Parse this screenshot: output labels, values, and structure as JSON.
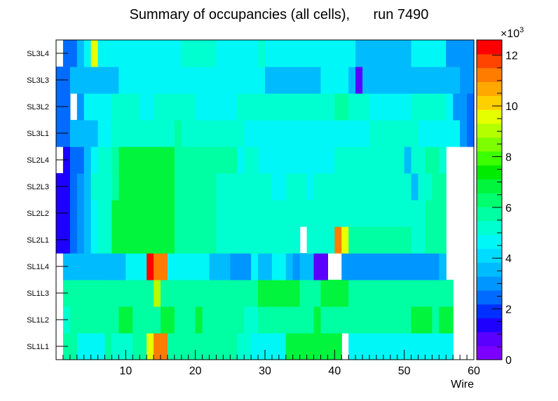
{
  "chart_data": {
    "type": "heatmap",
    "title": "Summary of occupancies (all cells),      run 7490",
    "xlabel": "Wire",
    "ylabel": "",
    "xlim": [
      0,
      60
    ],
    "x_ticks": [
      "10",
      "20",
      "30",
      "40",
      "50",
      "60"
    ],
    "y_categories": [
      "SL1L1",
      "SL1L2",
      "SL1L3",
      "SL1L4",
      "SL2L1",
      "SL2L2",
      "SL2L3",
      "SL2L4",
      "SL3L1",
      "SL3L2",
      "SL3L3",
      "SL3L4"
    ],
    "z_range": [
      0,
      12600
    ],
    "z_multiplier_label": "×10",
    "z_multiplier_exponent": "3",
    "z_ticks": [
      "0",
      "2",
      "4",
      "6",
      "8",
      "10",
      "12"
    ],
    "values": [
      [
        0,
        5.6,
        5.6,
        4.6,
        4.6,
        4.6,
        4.6,
        5.6,
        5.0,
        5.0,
        5.0,
        5.6,
        5.6,
        9.6,
        11.0,
        11.0,
        6.0,
        5.6,
        5.6,
        6.0,
        6.0,
        5.6,
        5.6,
        5.6,
        5.6,
        5.6,
        5.0,
        5.0,
        4.6,
        4.6,
        4.6,
        4.6,
        4.6,
        6.6,
        6.6,
        6.6,
        6.6,
        6.6,
        6.6,
        6.6,
        6.6,
        0,
        4.6,
        4.6,
        4.6,
        4.4,
        4.4,
        4.4,
        4.4,
        4.6,
        4.6,
        4.6,
        4.6,
        4.6,
        4.6,
        4.6,
        4.4,
        0,
        0,
        0
      ],
      [
        0,
        5.0,
        5.6,
        5.6,
        5.6,
        5.6,
        5.6,
        5.6,
        5.6,
        6.6,
        6.6,
        6.0,
        5.6,
        6.0,
        6.0,
        6.6,
        6.6,
        5.6,
        5.6,
        6.0,
        6.6,
        5.6,
        5.6,
        5.6,
        5.6,
        5.6,
        5.6,
        5.0,
        5.0,
        5.6,
        5.6,
        5.6,
        5.6,
        6.0,
        6.0,
        5.6,
        5.6,
        6.6,
        6.0,
        6.0,
        6.0,
        6.0,
        5.6,
        5.6,
        5.6,
        5.6,
        5.6,
        5.6,
        5.6,
        5.6,
        5.6,
        6.6,
        6.6,
        6.6,
        5.6,
        6.6,
        6.6,
        0,
        0,
        0
      ],
      [
        0,
        5.6,
        5.6,
        5.6,
        5.6,
        5.6,
        5.6,
        5.6,
        5.6,
        5.6,
        5.6,
        5.6,
        6.0,
        6.0,
        9.2,
        6.0,
        6.0,
        6.0,
        6.0,
        6.0,
        6.0,
        6.0,
        6.0,
        6.0,
        6.0,
        6.0,
        6.0,
        5.6,
        5.6,
        6.6,
        6.6,
        6.6,
        6.6,
        6.6,
        6.6,
        6.0,
        5.6,
        6.0,
        6.6,
        6.6,
        6.6,
        6.6,
        5.6,
        5.6,
        5.6,
        5.6,
        5.6,
        5.6,
        5.6,
        5.6,
        5.6,
        5.6,
        5.6,
        5.6,
        5.6,
        5.6,
        5.6,
        0,
        0,
        0
      ],
      [
        0,
        3.8,
        3.8,
        3.8,
        3.8,
        3.8,
        3.8,
        3.8,
        3.8,
        3.8,
        4.6,
        4.6,
        4.6,
        12.2,
        11.0,
        11.0,
        4.6,
        4.6,
        4.6,
        4.6,
        4.6,
        4.6,
        3.8,
        3.8,
        3.8,
        3.2,
        3.2,
        3.2,
        4.6,
        3.8,
        3.8,
        4.6,
        4.6,
        3.8,
        3.2,
        3.8,
        3.8,
        0.8,
        0.8,
        0,
        0,
        3.2,
        2.8,
        2.8,
        2.8,
        2.8,
        2.8,
        2.8,
        2.8,
        2.8,
        2.8,
        2.8,
        2.8,
        2.8,
        2.8,
        3.8,
        0,
        0,
        0,
        0
      ],
      [
        1.4,
        1.4,
        2.2,
        2.8,
        3.8,
        4.6,
        5.0,
        5.0,
        6.6,
        6.6,
        6.6,
        6.6,
        6.6,
        6.6,
        6.6,
        6.6,
        6.6,
        5.6,
        5.6,
        5.6,
        5.6,
        5.6,
        5.6,
        5.0,
        5.0,
        5.0,
        5.0,
        5.0,
        5.0,
        5.0,
        5.0,
        5.0,
        5.0,
        5.0,
        5.0,
        0,
        5.0,
        5.0,
        5.0,
        5.0,
        11.0,
        9.6,
        6.0,
        5.6,
        5.6,
        5.6,
        5.6,
        5.6,
        5.6,
        5.6,
        5.6,
        5.0,
        5.0,
        5.6,
        5.6,
        5.6,
        0,
        0,
        0,
        0
      ],
      [
        1.4,
        1.4,
        2.2,
        2.8,
        3.8,
        4.6,
        5.0,
        5.0,
        6.6,
        6.6,
        6.6,
        6.6,
        6.6,
        6.6,
        6.6,
        6.6,
        6.6,
        6.0,
        6.0,
        6.0,
        5.6,
        5.6,
        5.6,
        5.0,
        5.0,
        5.0,
        5.0,
        5.0,
        5.0,
        5.0,
        5.0,
        5.0,
        5.0,
        5.0,
        5.0,
        5.0,
        5.0,
        5.0,
        5.0,
        5.0,
        5.0,
        5.0,
        5.0,
        5.0,
        5.0,
        5.0,
        5.0,
        5.0,
        5.0,
        5.0,
        5.0,
        5.0,
        5.0,
        5.6,
        5.6,
        5.6,
        0,
        0,
        0,
        0
      ],
      [
        1.4,
        1.4,
        2.2,
        2.8,
        3.8,
        5.0,
        5.0,
        5.0,
        6.0,
        6.6,
        6.6,
        6.6,
        6.6,
        6.6,
        6.6,
        6.6,
        6.6,
        5.6,
        5.6,
        5.6,
        5.6,
        5.6,
        5.6,
        5.0,
        5.0,
        5.0,
        5.0,
        5.0,
        5.0,
        5.0,
        5.0,
        4.6,
        4.6,
        5.0,
        5.0,
        5.0,
        4.6,
        5.0,
        5.0,
        5.0,
        5.0,
        5.0,
        5.0,
        5.0,
        5.0,
        5.0,
        5.0,
        5.0,
        5.0,
        5.0,
        5.0,
        3.8,
        5.0,
        5.0,
        5.6,
        5.6,
        0,
        0,
        0,
        0
      ],
      [
        0,
        1.6,
        2.2,
        2.2,
        3.8,
        4.6,
        5.0,
        5.0,
        6.0,
        6.6,
        6.6,
        6.6,
        6.6,
        6.6,
        6.6,
        6.6,
        6.6,
        6.0,
        6.0,
        6.0,
        6.0,
        6.0,
        6.0,
        6.0,
        5.6,
        5.6,
        4.6,
        5.0,
        5.0,
        4.6,
        4.6,
        4.6,
        4.6,
        4.6,
        4.6,
        4.6,
        4.6,
        4.6,
        4.6,
        4.6,
        5.0,
        5.0,
        5.0,
        5.0,
        5.0,
        5.0,
        5.0,
        5.0,
        5.0,
        5.0,
        3.8,
        5.0,
        5.0,
        5.6,
        5.6,
        5.0,
        0,
        0,
        0,
        0
      ],
      [
        2.2,
        2.2,
        3.8,
        3.8,
        3.8,
        3.8,
        4.6,
        4.6,
        5.0,
        5.0,
        5.0,
        5.0,
        5.0,
        5.0,
        5.0,
        5.0,
        5.0,
        5.6,
        5.0,
        5.0,
        5.0,
        5.0,
        5.0,
        5.0,
        5.0,
        5.0,
        5.0,
        4.6,
        4.6,
        4.6,
        4.6,
        4.6,
        4.6,
        4.6,
        4.6,
        4.6,
        4.6,
        4.6,
        4.6,
        4.6,
        4.6,
        4.6,
        4.6,
        4.6,
        4.6,
        5.0,
        5.0,
        5.0,
        5.0,
        5.0,
        5.0,
        5.0,
        4.6,
        4.6,
        4.6,
        4.6,
        4.6,
        4.6,
        2.8,
        2.2
      ],
      [
        2.2,
        2.2,
        0,
        3.2,
        4.6,
        4.6,
        4.6,
        4.6,
        5.0,
        5.0,
        5.0,
        5.0,
        4.6,
        4.6,
        5.0,
        5.0,
        5.0,
        5.0,
        5.0,
        5.0,
        4.6,
        4.6,
        4.6,
        4.6,
        4.6,
        4.6,
        5.0,
        5.0,
        5.0,
        5.0,
        5.0,
        5.0,
        5.0,
        5.0,
        5.0,
        5.0,
        5.0,
        5.0,
        5.0,
        5.0,
        5.6,
        5.6,
        5.0,
        5.0,
        5.0,
        4.6,
        4.6,
        4.6,
        4.6,
        4.6,
        4.6,
        5.0,
        5.0,
        5.0,
        5.0,
        5.0,
        4.6,
        2.8,
        2.8,
        2.2
      ],
      [
        2.2,
        2.2,
        3.8,
        3.8,
        3.8,
        3.8,
        3.8,
        3.8,
        3.8,
        4.6,
        4.6,
        4.6,
        4.6,
        4.6,
        4.6,
        4.6,
        4.6,
        4.6,
        4.6,
        4.6,
        4.6,
        4.6,
        4.6,
        4.6,
        4.6,
        4.6,
        4.6,
        4.6,
        4.6,
        4.6,
        3.8,
        3.8,
        3.8,
        3.8,
        3.8,
        3.8,
        3.8,
        3.8,
        4.6,
        4.6,
        4.6,
        4.6,
        3.8,
        0.8,
        3.8,
        3.8,
        3.8,
        3.8,
        3.8,
        3.8,
        3.8,
        3.8,
        3.8,
        3.8,
        3.8,
        3.8,
        3.8,
        3.8,
        2.8,
        2.8
      ],
      [
        0,
        2.2,
        2.2,
        3.8,
        4.6,
        9.6,
        4.6,
        4.6,
        4.6,
        4.6,
        4.6,
        4.6,
        4.6,
        4.6,
        4.6,
        4.6,
        4.6,
        4.6,
        5.0,
        5.0,
        5.0,
        5.0,
        5.0,
        4.6,
        4.6,
        4.6,
        4.6,
        4.6,
        4.6,
        5.0,
        4.6,
        4.6,
        4.6,
        4.6,
        4.6,
        4.6,
        4.6,
        4.6,
        4.6,
        4.6,
        4.6,
        4.6,
        4.6,
        3.8,
        3.8,
        3.8,
        3.8,
        3.8,
        3.8,
        3.8,
        3.8,
        4.6,
        4.6,
        4.6,
        4.6,
        4.6,
        3.2,
        3.2,
        2.8,
        2.8
      ]
    ]
  }
}
